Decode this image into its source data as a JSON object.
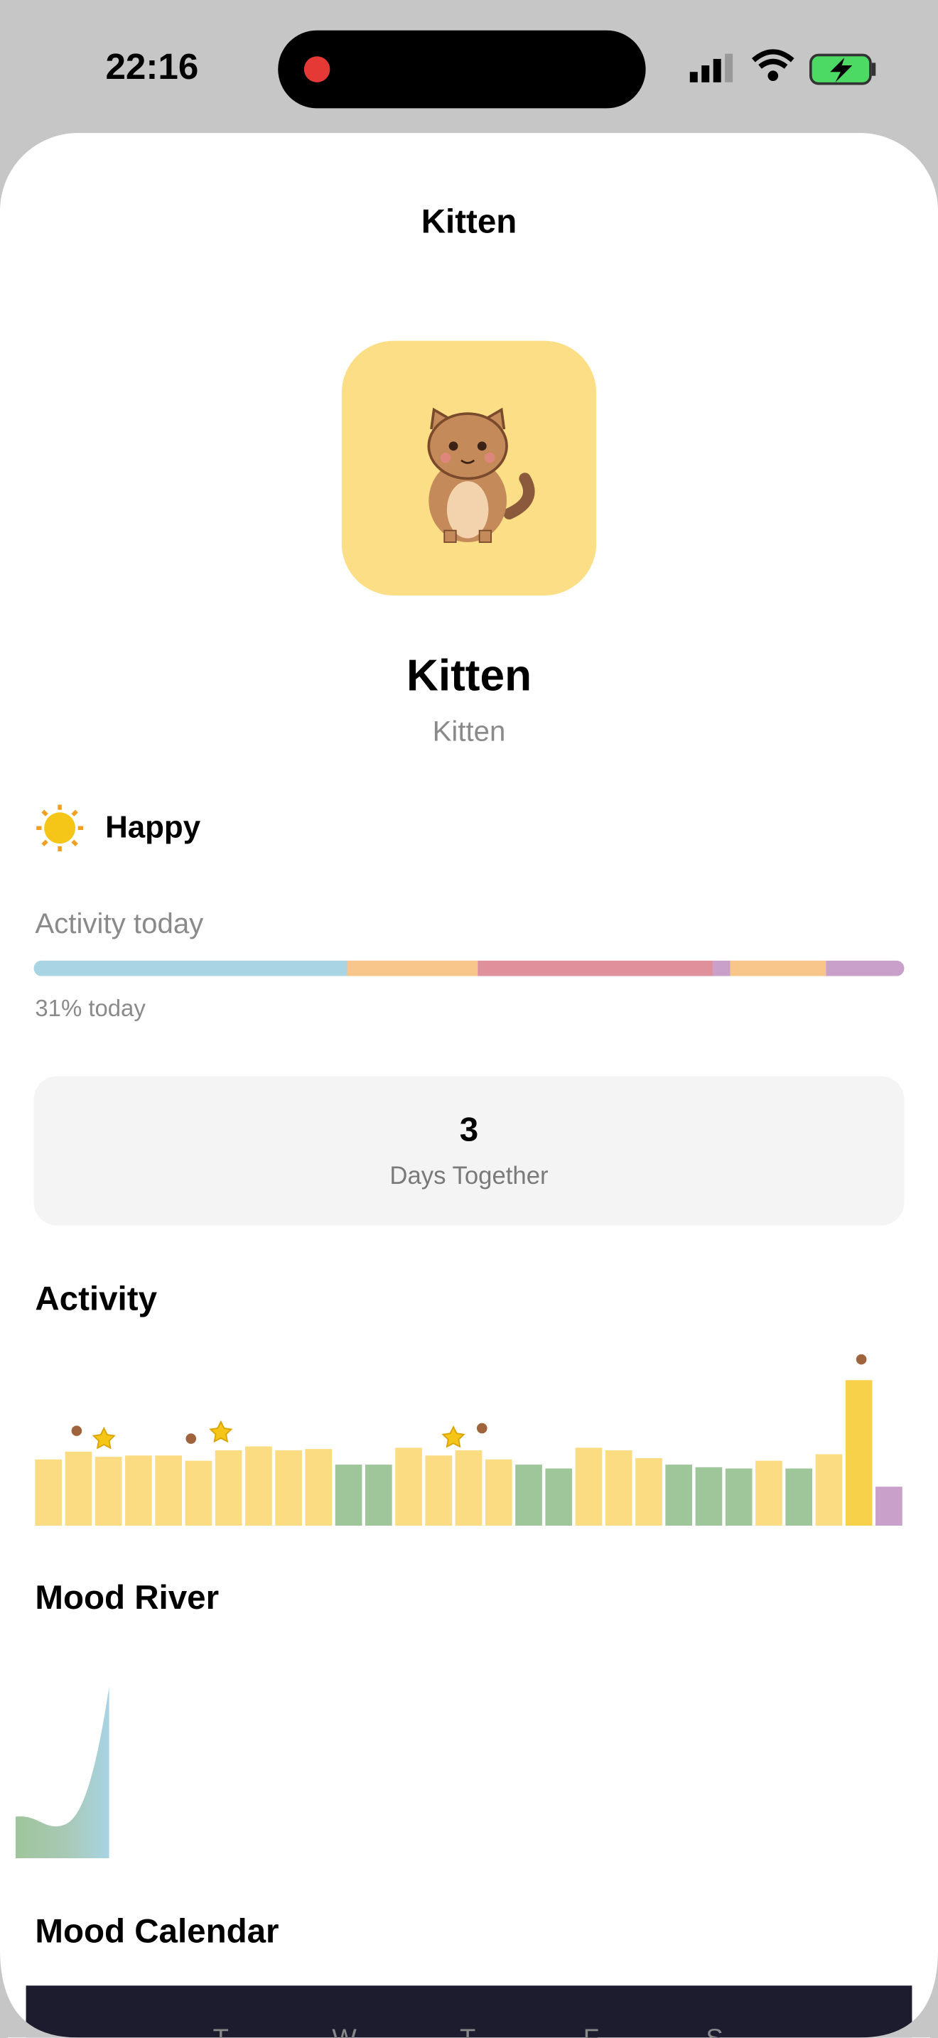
{
  "status_bar": {
    "time": "22:16"
  },
  "nav": {
    "title": "Kitten"
  },
  "pet": {
    "name": "Kitten",
    "species": "Kitten",
    "mood": "Happy"
  },
  "activity_today": {
    "label": "Activity today",
    "caption": "31% today",
    "segments": [
      {
        "value": 36,
        "color": "#a8d4e3"
      },
      {
        "value": 15,
        "color": "#f8c58a"
      },
      {
        "value": 27,
        "color": "#e0909a"
      },
      {
        "value": 2,
        "color": "#c9a0c9"
      },
      {
        "value": 11,
        "color": "#f8c58a"
      },
      {
        "value": 9,
        "color": "#c9a0c9"
      }
    ]
  },
  "stats": {
    "value": 3,
    "label": "Days Together"
  },
  "activity": {
    "title": "Activity",
    "bars": [
      {
        "value": 51,
        "color": "#fbdc82"
      },
      {
        "value": 57,
        "color": "#fbdc82"
      },
      {
        "value": 53,
        "color": "#fbdc82"
      },
      {
        "value": 54,
        "color": "#fbdc82"
      },
      {
        "value": 54,
        "color": "#fbdc82"
      },
      {
        "value": 50,
        "color": "#fbdc82"
      },
      {
        "value": 58,
        "color": "#fbdc82"
      },
      {
        "value": 61,
        "color": "#fbdc82"
      },
      {
        "value": 58,
        "color": "#fbdc82"
      },
      {
        "value": 59,
        "color": "#fbdc82"
      },
      {
        "value": 47,
        "color": "#9fc59b"
      },
      {
        "value": 47,
        "color": "#9fc59b"
      },
      {
        "value": 60,
        "color": "#fbdc82"
      },
      {
        "value": 54,
        "color": "#fbdc82"
      },
      {
        "value": 58,
        "color": "#fbdc82"
      },
      {
        "value": 51,
        "color": "#fbdc82"
      },
      {
        "value": 47,
        "color": "#9fc59b"
      },
      {
        "value": 44,
        "color": "#9fc59b"
      },
      {
        "value": 60,
        "color": "#fbdc82"
      },
      {
        "value": 58,
        "color": "#fbdc82"
      },
      {
        "value": 52,
        "color": "#fbdc82"
      },
      {
        "value": 47,
        "color": "#9fc59b"
      },
      {
        "value": 45,
        "color": "#9fc59b"
      },
      {
        "value": 44,
        "color": "#9fc59b"
      },
      {
        "value": 50,
        "color": "#fbdc82"
      },
      {
        "value": 44,
        "color": "#9fc59b"
      },
      {
        "value": 55,
        "color": "#fbdc82"
      },
      {
        "value": 112,
        "color": "#f7d14a"
      },
      {
        "value": 30,
        "color": "#c9a0c9"
      }
    ]
  },
  "mood_river": {
    "title": "Mood River"
  },
  "mood_calendar": {
    "title": "Mood Calendar",
    "weekdays": [
      "T",
      "W",
      "T",
      "F",
      "S"
    ]
  }
}
